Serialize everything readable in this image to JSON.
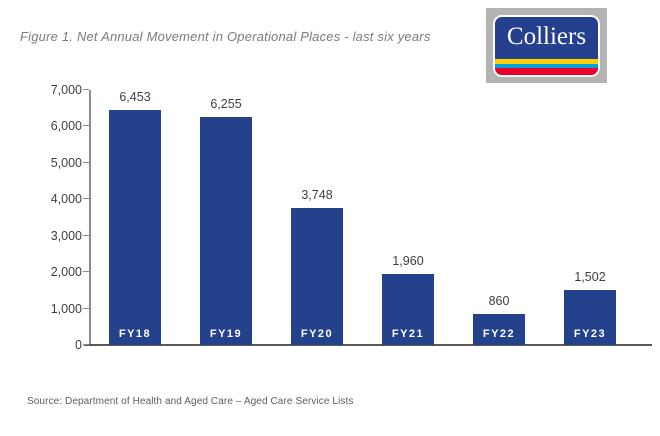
{
  "header": {
    "figure_title": "Figure 1. Net Annual Movement in Operational Places - last six years"
  },
  "logo": {
    "text": "Colliers",
    "colors": {
      "background_gray": "#b3b3b4",
      "badge_blue": "#24408e",
      "stripe_yellow": "#ffd100",
      "stripe_cyan": "#00a3e0",
      "stripe_red": "#ea0029"
    }
  },
  "chart_data": {
    "type": "bar",
    "title": "Net Annual Movement in Operational Places - last six years",
    "categories": [
      "FY18",
      "FY19",
      "FY20",
      "FY21",
      "FY22",
      "FY23"
    ],
    "values": [
      6453,
      6255,
      3748,
      1960,
      860,
      1502
    ],
    "value_labels": [
      "6,453",
      "6,255",
      "3,748",
      "1,960",
      "860",
      "1,502"
    ],
    "xlabel": "",
    "ylabel": "",
    "ylim": [
      0,
      7000
    ],
    "ytick_step": 1000,
    "ytick_labels": [
      "0",
      "1,000",
      "2,000",
      "3,000",
      "4,000",
      "5,000",
      "6,000",
      "7,000"
    ],
    "grid": false,
    "legend": false,
    "bar_color": "#24418c",
    "value_label_color": "#3f3f3f",
    "category_label_color": "#ffffff",
    "axis_color": "#595959"
  },
  "footer": {
    "source": "Source: Department of Health and Aged Care – Aged Care Service Lists"
  }
}
